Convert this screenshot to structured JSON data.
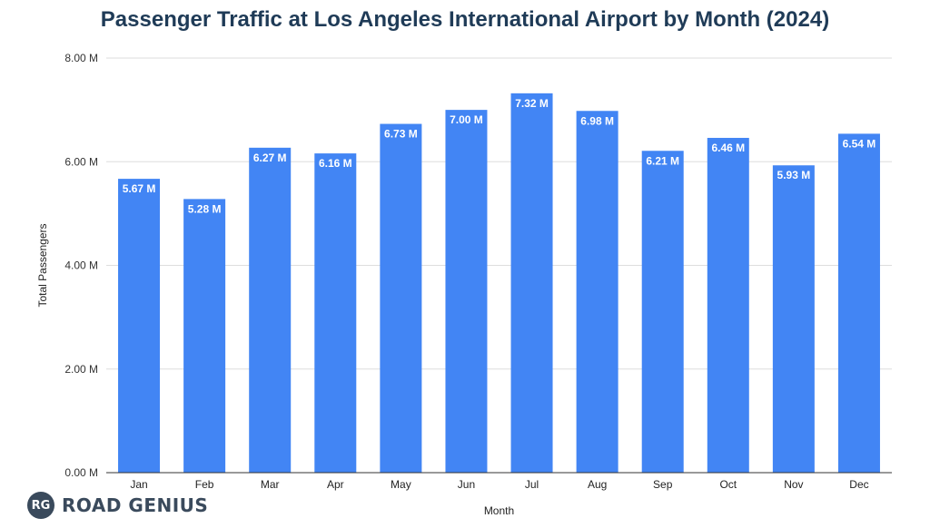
{
  "chart_data": {
    "type": "bar",
    "title": "Passenger Traffic at Los Angeles International Airport by Month (2024)",
    "xlabel": "Month",
    "ylabel": "Total Passengers",
    "categories": [
      "Jan",
      "Feb",
      "Mar",
      "Apr",
      "May",
      "Jun",
      "Jul",
      "Aug",
      "Sep",
      "Oct",
      "Nov",
      "Dec"
    ],
    "values": [
      5.67,
      5.28,
      6.27,
      6.16,
      6.73,
      7.0,
      7.32,
      6.98,
      6.21,
      6.46,
      5.93,
      6.54
    ],
    "value_unit": "millions",
    "value_labels": [
      "5.67 M",
      "5.28 M",
      "6.27 M",
      "6.16 M",
      "6.73 M",
      "7.00 M",
      "7.32 M",
      "6.98 M",
      "6.21 M",
      "6.46 M",
      "5.93 M",
      "6.54 M"
    ],
    "ylim": [
      0,
      8
    ],
    "yticks": [
      0,
      2,
      4,
      6,
      8
    ],
    "ytick_labels": [
      "0.00 M",
      "2.00 M",
      "4.00 M",
      "6.00 M",
      "8.00 M"
    ],
    "grid": true,
    "bar_color": "#4285f4",
    "title_color": "#1f3b57",
    "gridline_color": "#dddddd",
    "axis_color": "#333333"
  },
  "branding": {
    "badge_text": "RG",
    "name": "ROAD GENIUS",
    "color": "#3a4a5c"
  }
}
